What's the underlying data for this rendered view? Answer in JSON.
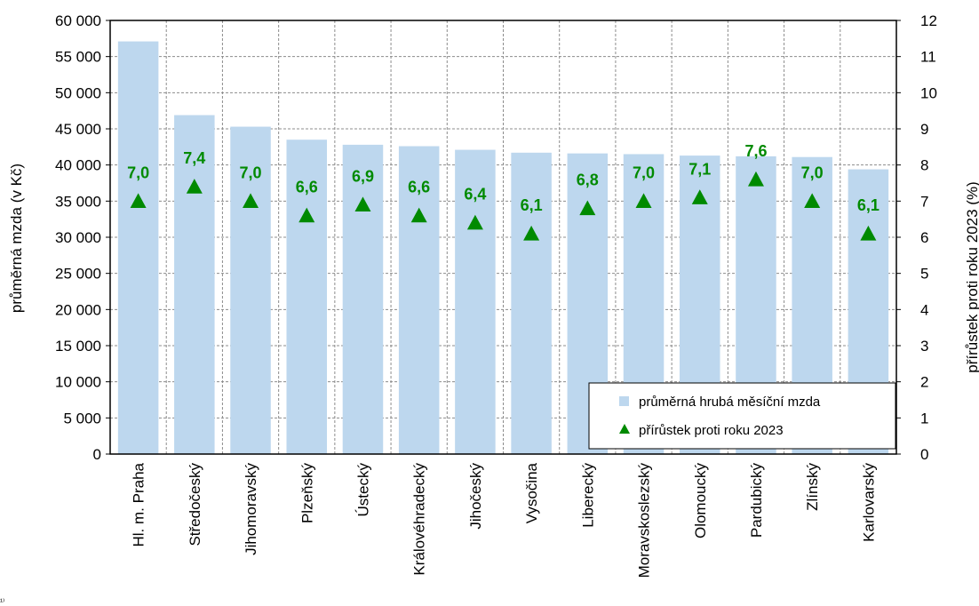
{
  "chart_data": {
    "type": "bar",
    "categories": [
      "Hl. m. Praha",
      "Středočeský",
      "Jihomoravský",
      "Plzeňský",
      "Ústecký",
      "Královéhradecký",
      "Jihočeský",
      "Vysočina",
      "Liberecký",
      "Moravskoslezský",
      "Olomoucký",
      "Pardubický",
      "Zlínský",
      "Karlovarský"
    ],
    "series": [
      {
        "name": "průměrná hrubá měsíční mzda",
        "type": "bar",
        "axis": "left",
        "color": "#bdd7ee",
        "values": [
          57100,
          46900,
          45300,
          43500,
          42800,
          42600,
          42100,
          41700,
          41600,
          41500,
          41300,
          41200,
          41100,
          39400
        ]
      },
      {
        "name": "přírůstek proti roku 2023",
        "type": "scatter",
        "marker": "triangle",
        "axis": "right",
        "color": "#008a00",
        "values": [
          7.0,
          7.4,
          7.0,
          6.6,
          6.9,
          6.6,
          6.4,
          6.1,
          6.8,
          7.0,
          7.1,
          7.6,
          7.0,
          6.1
        ],
        "labels": [
          "7,0",
          "7,4",
          "7,0",
          "6,6",
          "6,9",
          "6,6",
          "6,4",
          "6,1",
          "6,8",
          "7,0",
          "7,1",
          "7,6",
          "7,0",
          "6,1"
        ]
      }
    ],
    "ylabel": "průměrná mzda (v Kč)",
    "y2label": "přírůstek  proti  roku 2023 (%)",
    "ylim": [
      0,
      60000
    ],
    "y2lim": [
      0,
      12
    ],
    "yticks": [
      "0",
      "5 000",
      "10 000",
      "15 000",
      "20 000",
      "25 000",
      "30 000",
      "35 000",
      "40 000",
      "45 000",
      "50 000",
      "55 000",
      "60 000"
    ],
    "y2ticks": [
      "0",
      "1",
      "2",
      "3",
      "4",
      "5",
      "6",
      "7",
      "8",
      "9",
      "10",
      "11",
      "12"
    ],
    "grid": true,
    "legend_position": "bottom-right",
    "footnote": "¹⁾"
  }
}
